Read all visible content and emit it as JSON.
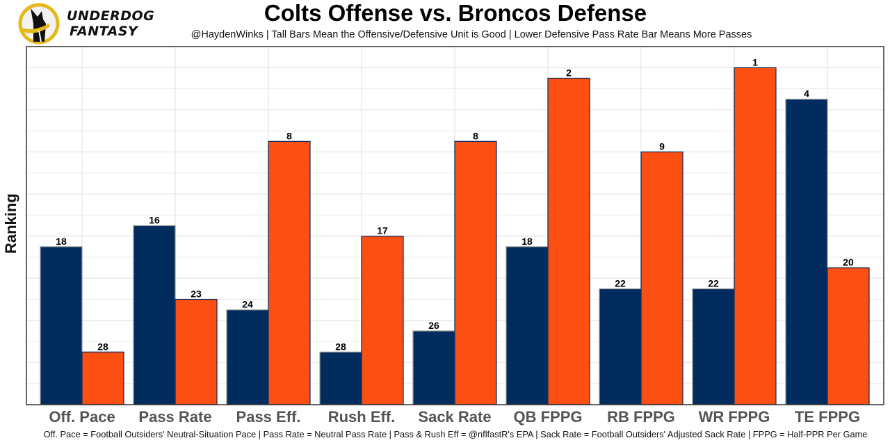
{
  "logo": {
    "line1": "UNDERDOG",
    "line2": "FANTASY",
    "icon": "dog-icon"
  },
  "colors": {
    "offense": "#022C5E",
    "defense": "#FB4F14",
    "offense_border": "#9a9a9a",
    "defense_border": "#022C5E",
    "grid": "#ebebeb"
  },
  "chart_data": {
    "type": "bar",
    "title": "Colts Offense vs. Broncos Defense",
    "subtitle": "@HaydenWinks | Tall Bars Mean the Offensive/Defensive Unit is Good | Lower Defensive Pass Rate Bar Means More Passes",
    "xlabel": "",
    "ylabel": "Ranking",
    "footer": "Off. Pace = Football Outsiders' Neutral-Situation Pace | Pass Rate = Neutral Pass Rate | Pass & Rush Eff = @nflfastR's EPA | Sack Rate = Football Outsiders' Adjusted Sack Rate | FPPG = Half-PPR Per Game",
    "categories": [
      "Off. Pace",
      "Pass Rate",
      "Pass Eff.",
      "Rush Eff.",
      "Sack Rate",
      "QB FPPG",
      "RB FPPG",
      "WR FPPG",
      "TE FPPG"
    ],
    "series": [
      {
        "name": "Colts Offense",
        "values": [
          18,
          16,
          24,
          28,
          26,
          18,
          22,
          22,
          4
        ]
      },
      {
        "name": "Broncos Defense",
        "values": [
          28,
          23,
          8,
          17,
          8,
          2,
          9,
          1,
          20
        ]
      }
    ],
    "bar_height_rule": "height proportional to (33 - ranking)",
    "ylim": [
      0,
      34
    ],
    "y_ticks_shown": false,
    "grid": true,
    "legend": "none"
  }
}
